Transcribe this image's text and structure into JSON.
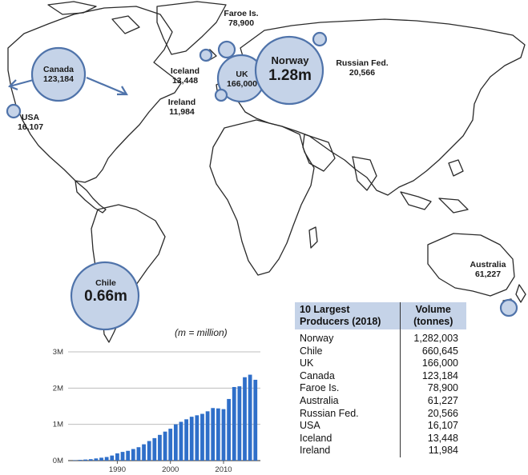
{
  "map": {
    "note": "(m = million)",
    "colors": {
      "bubble_fill": "#c5d3e8",
      "bubble_stroke": "#4f73aa",
      "land_stroke": "#2a2a2a"
    },
    "bubbles": [
      {
        "id": "norway",
        "name": "Norway",
        "value": "1.28m"
      },
      {
        "id": "chile",
        "name": "Chile",
        "value": "0.66m"
      },
      {
        "id": "uk",
        "name": "UK",
        "value": "166,000"
      },
      {
        "id": "canada",
        "name": "Canada",
        "value": "123,184"
      },
      {
        "id": "faroe",
        "name": "Faroe Is.",
        "value": "78,900"
      },
      {
        "id": "australia",
        "name": "Australia",
        "value": "61,227"
      },
      {
        "id": "russia",
        "name": "Russian Fed.",
        "value": "20,566"
      },
      {
        "id": "usa",
        "name": "USA",
        "value": "16,107"
      },
      {
        "id": "iceland",
        "name": "Iceland",
        "value": "13,448"
      },
      {
        "id": "ireland",
        "name": "Ireland",
        "value": "11,984"
      }
    ]
  },
  "table": {
    "header_left": [
      "10 Largest",
      "Producers (2018)"
    ],
    "header_right": [
      "Volume",
      "(tonnes)"
    ],
    "rows": [
      {
        "country": "Norway",
        "volume": "1,282,003"
      },
      {
        "country": "Chile",
        "volume": "660,645"
      },
      {
        "country": "UK",
        "volume": "166,000"
      },
      {
        "country": "Canada",
        "volume": "123,184"
      },
      {
        "country": "Faroe Is.",
        "volume": "78,900"
      },
      {
        "country": "Australia",
        "volume": "61,227"
      },
      {
        "country": "Russian Fed.",
        "volume": "20,566"
      },
      {
        "country": "USA",
        "volume": "16,107"
      },
      {
        "country": "Iceland",
        "volume": "13,448"
      },
      {
        "country": "Ireland",
        "volume": "11,984"
      }
    ]
  },
  "chart_data": {
    "type": "bar",
    "x": [
      1982,
      1983,
      1984,
      1985,
      1986,
      1987,
      1988,
      1989,
      1990,
      1991,
      1992,
      1993,
      1994,
      1995,
      1996,
      1997,
      1998,
      1999,
      2000,
      2001,
      2002,
      2003,
      2004,
      2005,
      2006,
      2007,
      2008,
      2009,
      2010,
      2011,
      2012,
      2013,
      2014,
      2015,
      2016
    ],
    "values": [
      0.01,
      0.02,
      0.03,
      0.04,
      0.06,
      0.08,
      0.1,
      0.14,
      0.2,
      0.24,
      0.27,
      0.32,
      0.37,
      0.45,
      0.54,
      0.62,
      0.71,
      0.8,
      0.88,
      1.0,
      1.07,
      1.14,
      1.21,
      1.25,
      1.29,
      1.36,
      1.45,
      1.44,
      1.42,
      1.7,
      2.03,
      2.05,
      2.3,
      2.37,
      2.23
    ],
    "xticks": [
      "1990",
      "2000",
      "2010"
    ],
    "yticks": [
      "0M",
      "1M",
      "2M",
      "3M"
    ],
    "ylim": [
      0,
      3
    ],
    "grid": true,
    "bar_color": "#2f6fc9"
  }
}
